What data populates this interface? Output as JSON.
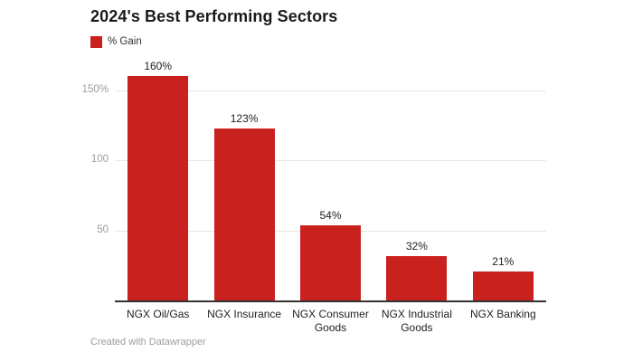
{
  "title": "2024's Best Performing Sectors",
  "legend": {
    "label": "% Gain",
    "color": "#c9211e"
  },
  "footer": "Created with Datawrapper",
  "colors": {
    "bar": "#c9211e",
    "title_text": "#1a1a1a",
    "axis_line": "#333333",
    "gridline": "#e7e7e7",
    "tick_text": "#9c9c9c",
    "category_text": "#222222",
    "background": "#ffffff"
  },
  "chart_data": {
    "type": "bar",
    "title": "2024's Best Performing Sectors",
    "legend_entries": [
      "% Gain"
    ],
    "legend_position": "top-left",
    "categories": [
      "NGX Oil/Gas",
      "NGX Insurance",
      "NGX Consumer Goods",
      "NGX Industrial Goods",
      "NGX Banking"
    ],
    "values": [
      160,
      123,
      54,
      32,
      21
    ],
    "value_labels": [
      "160%",
      "123%",
      "54%",
      "32%",
      "21%"
    ],
    "yticks": [
      {
        "value": 50,
        "label": "50"
      },
      {
        "value": 100,
        "label": "100"
      },
      {
        "value": 150,
        "label": "150%"
      }
    ],
    "ylim": [
      0,
      160
    ],
    "grid": true,
    "bar_color": "#c9211e",
    "xlabel": "",
    "ylabel": ""
  }
}
